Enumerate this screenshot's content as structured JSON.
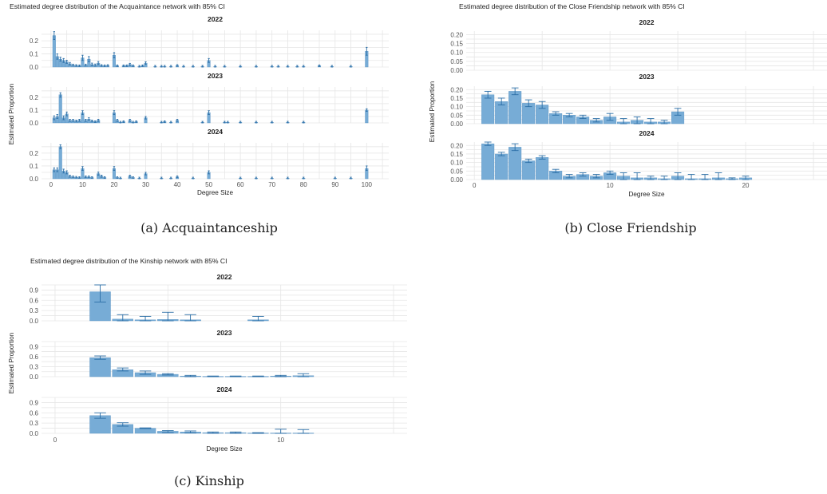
{
  "captions": {
    "a": "(a) Acquaintanceship",
    "b": "(b) Close Friendship",
    "c": "(c) Kinship"
  },
  "colors": {
    "bar": "#77acd6",
    "bar_edge": "#5a93c2",
    "error_bar": "#2b6ea6",
    "grid": "#e6e6e6"
  },
  "chart_data": [
    {
      "type": "bar",
      "title": "Estimated degree distribution of the Acquaintance network with 85% CI",
      "xlabel": "Degree Size",
      "ylabel": "Estimated Proportion",
      "xlim": [
        -3,
        107
      ],
      "ylim": [
        0,
        0.28
      ],
      "xticks": [
        "0",
        "10",
        "20",
        "30",
        "40",
        "50",
        "60",
        "70",
        "80",
        "90",
        "100"
      ],
      "yticks": [
        "0.0",
        "0.1",
        "0.2"
      ],
      "panels": [
        {
          "name": "2022",
          "x": [
            1,
            2,
            3,
            4,
            5,
            6,
            7,
            8,
            9,
            10,
            11,
            12,
            13,
            14,
            15,
            16,
            17,
            18,
            20,
            21,
            23,
            24,
            25,
            26,
            28,
            29,
            30,
            33,
            35,
            36,
            38,
            40,
            42,
            45,
            48,
            50,
            52,
            55,
            60,
            65,
            70,
            72,
            75,
            78,
            80,
            85,
            89,
            95,
            100
          ],
          "values": [
            0.24,
            0.08,
            0.06,
            0.05,
            0.04,
            0.025,
            0.015,
            0.012,
            0.01,
            0.07,
            0.015,
            0.06,
            0.02,
            0.015,
            0.03,
            0.012,
            0.01,
            0.012,
            0.09,
            0.01,
            0.01,
            0.01,
            0.02,
            0.01,
            0.005,
            0.01,
            0.03,
            0.005,
            0.005,
            0.005,
            0.005,
            0.012,
            0.005,
            0.005,
            0.005,
            0.05,
            0.005,
            0.005,
            0.005,
            0.005,
            0.005,
            0.005,
            0.005,
            0.005,
            0.005,
            0.01,
            0.005,
            0.005,
            0.12
          ],
          "ci_low": [
            0.21,
            0.06,
            0.045,
            0.035,
            0.028,
            0.015,
            0.008,
            0.006,
            0.004,
            0.05,
            0.008,
            0.04,
            0.01,
            0.007,
            0.018,
            0.006,
            0.004,
            0.006,
            0.07,
            0.004,
            0.004,
            0.004,
            0.012,
            0.004,
            0.0,
            0.004,
            0.02,
            0.0,
            0.0,
            0.0,
            0.0,
            0.006,
            0.0,
            0.0,
            0.0,
            0.035,
            0.0,
            0.0,
            0.0,
            0.0,
            0.0,
            0.0,
            0.0,
            0.0,
            0.0,
            0.004,
            0.0,
            0.0,
            0.09
          ],
          "ci_high": [
            0.27,
            0.1,
            0.075,
            0.065,
            0.052,
            0.035,
            0.022,
            0.018,
            0.016,
            0.09,
            0.022,
            0.08,
            0.03,
            0.023,
            0.042,
            0.018,
            0.016,
            0.018,
            0.11,
            0.016,
            0.016,
            0.016,
            0.028,
            0.016,
            0.012,
            0.016,
            0.04,
            0.012,
            0.012,
            0.012,
            0.012,
            0.018,
            0.012,
            0.012,
            0.012,
            0.065,
            0.012,
            0.012,
            0.012,
            0.012,
            0.012,
            0.012,
            0.012,
            0.012,
            0.012,
            0.016,
            0.012,
            0.012,
            0.15
          ]
        },
        {
          "name": "2023",
          "x": [
            1,
            2,
            3,
            4,
            5,
            6,
            7,
            8,
            9,
            10,
            11,
            12,
            13,
            14,
            15,
            20,
            21,
            22,
            23,
            25,
            26,
            27,
            30,
            35,
            36,
            38,
            40,
            48,
            50,
            55,
            56,
            60,
            65,
            70,
            75,
            80,
            100
          ],
          "values": [
            0.04,
            0.05,
            0.22,
            0.04,
            0.07,
            0.02,
            0.02,
            0.015,
            0.02,
            0.08,
            0.02,
            0.03,
            0.015,
            0.01,
            0.02,
            0.08,
            0.02,
            0.005,
            0.01,
            0.02,
            0.005,
            0.01,
            0.04,
            0.005,
            0.01,
            0.005,
            0.02,
            0.005,
            0.08,
            0.005,
            0.005,
            0.005,
            0.005,
            0.005,
            0.005,
            0.005,
            0.1
          ],
          "ci_low": [
            0.025,
            0.035,
            0.2,
            0.025,
            0.055,
            0.012,
            0.012,
            0.008,
            0.012,
            0.065,
            0.012,
            0.02,
            0.008,
            0.004,
            0.012,
            0.065,
            0.012,
            0.0,
            0.004,
            0.012,
            0.0,
            0.004,
            0.03,
            0.0,
            0.004,
            0.0,
            0.012,
            0.0,
            0.065,
            0.0,
            0.0,
            0.0,
            0.0,
            0.0,
            0.0,
            0.0,
            0.09
          ],
          "ci_high": [
            0.055,
            0.065,
            0.235,
            0.055,
            0.085,
            0.028,
            0.028,
            0.022,
            0.028,
            0.095,
            0.028,
            0.04,
            0.022,
            0.016,
            0.028,
            0.095,
            0.028,
            0.012,
            0.016,
            0.028,
            0.012,
            0.016,
            0.05,
            0.012,
            0.016,
            0.012,
            0.028,
            0.012,
            0.095,
            0.012,
            0.012,
            0.012,
            0.012,
            0.012,
            0.012,
            0.012,
            0.11
          ]
        },
        {
          "name": "2024",
          "x": [
            1,
            2,
            3,
            4,
            5,
            6,
            7,
            8,
            9,
            10,
            11,
            12,
            13,
            15,
            16,
            17,
            20,
            21,
            22,
            25,
            26,
            28,
            30,
            35,
            38,
            40,
            45,
            50,
            60,
            65,
            70,
            75,
            80,
            90,
            95,
            100
          ],
          "values": [
            0.07,
            0.07,
            0.25,
            0.06,
            0.05,
            0.02,
            0.015,
            0.012,
            0.01,
            0.08,
            0.015,
            0.015,
            0.01,
            0.04,
            0.02,
            0.01,
            0.08,
            0.01,
            0.005,
            0.02,
            0.01,
            0.005,
            0.04,
            0.005,
            0.005,
            0.015,
            0.005,
            0.05,
            0.005,
            0.005,
            0.005,
            0.005,
            0.005,
            0.005,
            0.005,
            0.08
          ],
          "ci_low": [
            0.055,
            0.055,
            0.235,
            0.045,
            0.038,
            0.012,
            0.008,
            0.006,
            0.004,
            0.065,
            0.008,
            0.008,
            0.004,
            0.028,
            0.012,
            0.004,
            0.065,
            0.004,
            0.0,
            0.012,
            0.004,
            0.0,
            0.03,
            0.0,
            0.0,
            0.008,
            0.0,
            0.038,
            0.0,
            0.0,
            0.0,
            0.0,
            0.0,
            0.0,
            0.0,
            0.065
          ],
          "ci_high": [
            0.085,
            0.085,
            0.265,
            0.075,
            0.062,
            0.028,
            0.022,
            0.018,
            0.016,
            0.095,
            0.022,
            0.022,
            0.016,
            0.052,
            0.028,
            0.016,
            0.095,
            0.016,
            0.012,
            0.028,
            0.016,
            0.012,
            0.05,
            0.012,
            0.012,
            0.022,
            0.012,
            0.062,
            0.012,
            0.012,
            0.012,
            0.012,
            0.012,
            0.012,
            0.012,
            0.1
          ]
        }
      ]
    },
    {
      "type": "bar",
      "title": "Estimated degree distribution of the Close Friendship network with 85% CI",
      "xlabel": "Degree Size",
      "ylabel": "Estimated Proportion",
      "xlim": [
        -0.6,
        26
      ],
      "ylim": [
        0,
        0.22
      ],
      "xticks": [
        "0",
        "10",
        "20"
      ],
      "yticks": [
        "0.00",
        "0.05",
        "0.10",
        "0.15",
        "0.20"
      ],
      "panels": [
        {
          "name": "2022",
          "x": [],
          "values": [],
          "ci_low": [],
          "ci_high": []
        },
        {
          "name": "2023",
          "x": [
            1,
            2,
            3,
            4,
            5,
            6,
            7,
            8,
            9,
            10,
            11,
            12,
            13,
            14,
            15
          ],
          "values": [
            0.17,
            0.13,
            0.19,
            0.12,
            0.11,
            0.06,
            0.05,
            0.04,
            0.02,
            0.04,
            0.01,
            0.02,
            0.01,
            0.01,
            0.07
          ],
          "ci_low": [
            0.15,
            0.11,
            0.17,
            0.1,
            0.09,
            0.05,
            0.04,
            0.03,
            0.01,
            0.02,
            0.0,
            0.0,
            0.0,
            0.0,
            0.05
          ],
          "ci_high": [
            0.19,
            0.15,
            0.21,
            0.14,
            0.13,
            0.07,
            0.06,
            0.05,
            0.03,
            0.06,
            0.03,
            0.04,
            0.03,
            0.02,
            0.09
          ]
        },
        {
          "name": "2024",
          "x": [
            1,
            2,
            3,
            4,
            5,
            6,
            7,
            8,
            9,
            10,
            11,
            12,
            13,
            14,
            15,
            16,
            17,
            18,
            19,
            20
          ],
          "values": [
            0.21,
            0.15,
            0.19,
            0.11,
            0.13,
            0.05,
            0.02,
            0.03,
            0.02,
            0.04,
            0.02,
            0.01,
            0.01,
            0.005,
            0.02,
            0.005,
            0.005,
            0.01,
            0.005,
            0.01
          ],
          "ci_low": [
            0.2,
            0.14,
            0.17,
            0.1,
            0.12,
            0.04,
            0.01,
            0.02,
            0.01,
            0.03,
            0.0,
            0.0,
            0.0,
            0.0,
            0.0,
            0.0,
            0.0,
            0.0,
            0.0,
            0.0
          ],
          "ci_high": [
            0.22,
            0.16,
            0.21,
            0.12,
            0.14,
            0.06,
            0.03,
            0.04,
            0.03,
            0.05,
            0.04,
            0.04,
            0.02,
            0.02,
            0.04,
            0.03,
            0.03,
            0.04,
            0.01,
            0.02
          ]
        }
      ]
    },
    {
      "type": "bar",
      "title": "Estimated degree distribution of the Kinship network with 85% CI",
      "xlabel": "Degree Size",
      "ylabel": "Estimated Proportion",
      "xlim": [
        -0.6,
        15.6
      ],
      "ylim": [
        0,
        1.05
      ],
      "xticks": [
        "0",
        "10"
      ],
      "yticks": [
        "0.0",
        "0.3",
        "0.6",
        "0.9"
      ],
      "panels": [
        {
          "name": "2022",
          "x": [
            2,
            3,
            4,
            5,
            6,
            9
          ],
          "values": [
            0.85,
            0.05,
            0.03,
            0.04,
            0.03,
            0.03
          ],
          "ci_low": [
            0.55,
            0.0,
            0.0,
            0.0,
            0.0,
            0.0
          ],
          "ci_high": [
            1.05,
            0.18,
            0.13,
            0.25,
            0.18,
            0.13
          ]
        },
        {
          "name": "2023",
          "x": [
            2,
            3,
            4,
            5,
            6,
            7,
            8,
            9,
            10,
            11
          ],
          "values": [
            0.57,
            0.21,
            0.12,
            0.07,
            0.02,
            0.01,
            0.01,
            0.01,
            0.02,
            0.03
          ],
          "ci_low": [
            0.52,
            0.17,
            0.07,
            0.05,
            0.0,
            0.0,
            0.0,
            0.0,
            0.0,
            0.0
          ],
          "ci_high": [
            0.62,
            0.26,
            0.17,
            0.09,
            0.04,
            0.02,
            0.02,
            0.02,
            0.04,
            0.09
          ]
        },
        {
          "name": "2024",
          "x": [
            2,
            3,
            4,
            5,
            6,
            7,
            8,
            9,
            10,
            11
          ],
          "values": [
            0.52,
            0.26,
            0.15,
            0.06,
            0.04,
            0.02,
            0.02,
            0.01,
            0.01,
            0.01
          ],
          "ci_low": [
            0.44,
            0.21,
            0.14,
            0.02,
            0.01,
            0.0,
            0.0,
            0.0,
            0.0,
            0.0
          ],
          "ci_high": [
            0.6,
            0.31,
            0.16,
            0.08,
            0.07,
            0.04,
            0.04,
            0.02,
            0.12,
            0.11
          ]
        }
      ]
    }
  ]
}
